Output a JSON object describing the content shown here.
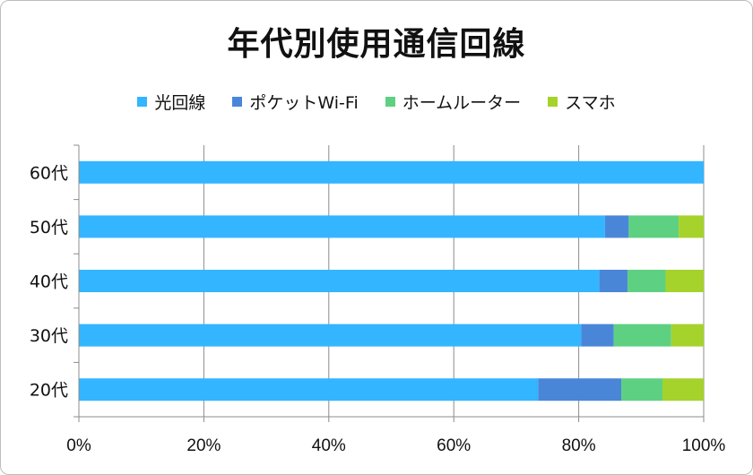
{
  "chart_data": {
    "type": "bar",
    "orientation": "horizontal",
    "stacked": "percent",
    "title": "年代別使用通信回線",
    "categories": [
      "60代",
      "50代",
      "40代",
      "30代",
      "20代"
    ],
    "series": [
      {
        "name": "光回線",
        "color": "#33b5ff",
        "values": [
          100,
          84.2,
          83.3,
          80.4,
          73.5
        ]
      },
      {
        "name": "ポケットWi-Fi",
        "color": "#4a86d8",
        "values": [
          0,
          3.8,
          4.5,
          5.2,
          13.3
        ]
      },
      {
        "name": "ホームルーター",
        "color": "#5ed082",
        "values": [
          0,
          8.0,
          6.1,
          9.2,
          6.6
        ]
      },
      {
        "name": "スマホ",
        "color": "#a6d22c",
        "values": [
          0,
          4.0,
          6.1,
          5.2,
          6.6
        ]
      }
    ],
    "xlim": [
      0,
      100
    ],
    "xticks": [
      "0%",
      "20%",
      "40%",
      "60%",
      "80%",
      "100%"
    ],
    "grid": "vertical",
    "legend": "top"
  }
}
